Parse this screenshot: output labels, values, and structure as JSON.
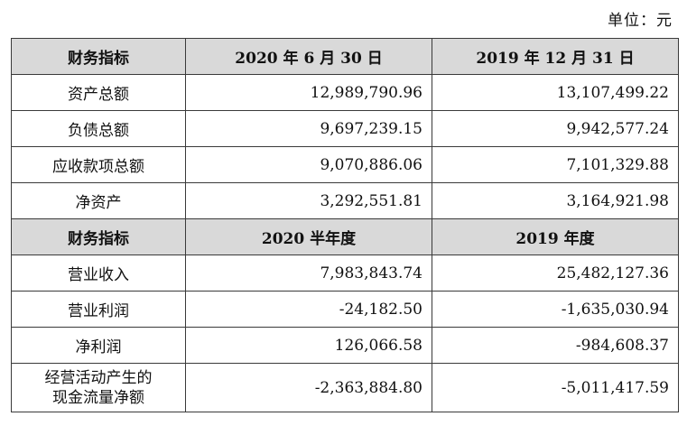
{
  "unit_label": "单位：元",
  "table": {
    "header1": [
      "财务指标",
      "2020 年 6 月 30 日",
      "2019 年 12 月 31 日"
    ],
    "section1_rows": [
      {
        "label": "资产总额",
        "v1": "12,989,790.96",
        "v2": "13,107,499.22"
      },
      {
        "label": "负债总额",
        "v1": "9,697,239.15",
        "v2": "9,942,577.24"
      },
      {
        "label": "应收款项总额",
        "v1": "9,070,886.06",
        "v2": "7,101,329.88"
      },
      {
        "label": "净资产",
        "v1": "3,292,551.81",
        "v2": "3,164,921.98"
      }
    ],
    "header2": [
      "财务指标",
      "2020 半年度",
      "2019 年度"
    ],
    "section2_rows": [
      {
        "label": "营业收入",
        "v1": "7,983,843.74",
        "v2": "25,482,127.36"
      },
      {
        "label": "营业利润",
        "v1": "-24,182.50",
        "v2": "-1,635,030.94"
      },
      {
        "label": "净利润",
        "v1": "126,066.58",
        "v2": "-984,608.37"
      }
    ],
    "last_row": {
      "label_line1": "经营活动产生的",
      "label_line2": "现金流量净额",
      "v1": "-2,363,884.80",
      "v2": "-5,011,417.59"
    }
  }
}
